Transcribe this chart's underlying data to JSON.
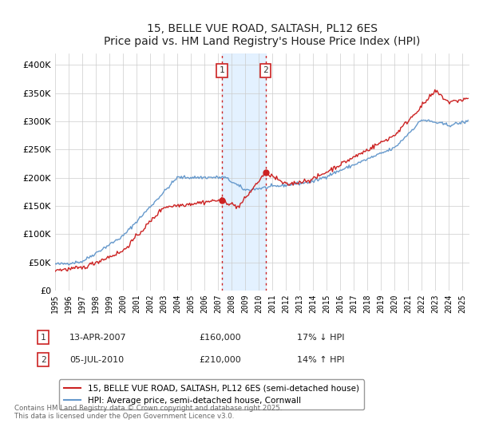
{
  "title": "15, BELLE VUE ROAD, SALTASH, PL12 6ES",
  "subtitle": "Price paid vs. HM Land Registry's House Price Index (HPI)",
  "legend_line1": "15, BELLE VUE ROAD, SALTASH, PL12 6ES (semi-detached house)",
  "legend_line2": "HPI: Average price, semi-detached house, Cornwall",
  "annotation1": {
    "num": "1",
    "date": "13-APR-2007",
    "price": "£160,000",
    "pct": "17% ↓ HPI"
  },
  "annotation2": {
    "num": "2",
    "date": "05-JUL-2010",
    "price": "£210,000",
    "pct": "14% ↑ HPI"
  },
  "footer": "Contains HM Land Registry data © Crown copyright and database right 2025.\nThis data is licensed under the Open Government Licence v3.0.",
  "hpi_color": "#6699cc",
  "price_color": "#cc2222",
  "shade_color": "#ddeeff",
  "marker_color": "#cc2222",
  "ylim": [
    0,
    420000
  ],
  "yticks": [
    0,
    50000,
    100000,
    150000,
    200000,
    250000,
    300000,
    350000,
    400000
  ],
  "bg_color": "#ffffff",
  "grid_color": "#cccccc",
  "sale1_x": 2007.29,
  "sale1_y": 160000,
  "sale2_x": 2010.5,
  "sale2_y": 210000,
  "xlim_start": 1995,
  "xlim_end": 2025.5
}
